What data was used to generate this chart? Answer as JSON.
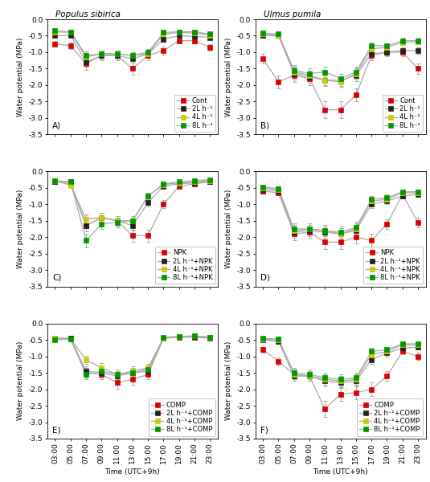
{
  "time_labels": [
    "03:00",
    "05:00",
    "07:00",
    "09:00",
    "11:00",
    "13:00",
    "15:00",
    "17:00",
    "19:00",
    "21:00",
    "23:00"
  ],
  "time_x": [
    0,
    1,
    2,
    3,
    4,
    5,
    6,
    7,
    8,
    9,
    10
  ],
  "panel_A": {
    "title": "Populus sibirica",
    "label": "A)",
    "series": [
      {
        "name": "Cont",
        "y": [
          -0.75,
          -0.8,
          -1.35,
          -1.1,
          -1.1,
          -1.5,
          -1.1,
          -0.95,
          -0.65,
          -0.65,
          -0.85
        ],
        "yerr": [
          0.08,
          0.1,
          0.18,
          0.14,
          0.14,
          0.18,
          0.14,
          0.12,
          0.08,
          0.08,
          0.1
        ],
        "color": "#dd0000",
        "marker": "s",
        "mfc": "#dd0000",
        "ms": 4.5
      },
      {
        "name": "2L h⁻¹",
        "y": [
          -0.5,
          -0.48,
          -1.3,
          -1.1,
          -1.1,
          -1.2,
          -1.05,
          -0.6,
          -0.5,
          -0.52,
          -0.55
        ],
        "yerr": [
          0.06,
          0.05,
          0.15,
          0.12,
          0.12,
          0.12,
          0.12,
          0.08,
          0.06,
          0.06,
          0.07
        ],
        "color": "#222222",
        "marker": "s",
        "mfc": "#222222",
        "ms": 4.5
      },
      {
        "name": "4L h⁻¹",
        "y": [
          -0.38,
          -0.4,
          -1.15,
          -1.05,
          -1.05,
          -1.1,
          -1.05,
          -0.45,
          -0.4,
          -0.42,
          -0.48
        ],
        "yerr": [
          0.05,
          0.05,
          0.12,
          0.1,
          0.1,
          0.1,
          0.1,
          0.06,
          0.05,
          0.05,
          0.06
        ],
        "color": "#cccc00",
        "marker": "s",
        "mfc": "#cccc00",
        "ms": 4.5
      },
      {
        "name": "8L h⁻¹",
        "y": [
          -0.35,
          -0.38,
          -1.1,
          -1.05,
          -1.05,
          -1.1,
          -1.0,
          -0.4,
          -0.38,
          -0.38,
          -0.45
        ],
        "yerr": [
          0.05,
          0.05,
          0.12,
          0.1,
          0.1,
          0.1,
          0.1,
          0.06,
          0.05,
          0.05,
          0.06
        ],
        "color": "#009900",
        "marker": "s",
        "mfc": "#009900",
        "ms": 4.5
      }
    ]
  },
  "panel_B": {
    "title": "Ulmus pumila",
    "label": "B)",
    "series": [
      {
        "name": "Cont",
        "y": [
          -1.2,
          -1.9,
          -1.7,
          -1.8,
          -2.75,
          -2.75,
          -2.3,
          -1.1,
          -1.0,
          -1.0,
          -1.5
        ],
        "yerr": [
          0.15,
          0.2,
          0.2,
          0.2,
          0.25,
          0.25,
          0.2,
          0.15,
          0.12,
          0.12,
          0.15
        ],
        "color": "#dd0000",
        "marker": "s",
        "mfc": "#dd0000",
        "ms": 4.5
      },
      {
        "name": "2L h⁻¹",
        "y": [
          -0.5,
          -0.5,
          -1.65,
          -1.75,
          -1.85,
          -1.85,
          -1.7,
          -1.05,
          -1.0,
          -0.95,
          -0.95
        ],
        "yerr": [
          0.06,
          0.06,
          0.18,
          0.18,
          0.18,
          0.18,
          0.18,
          0.12,
          0.1,
          0.1,
          0.1
        ],
        "color": "#222222",
        "marker": "s",
        "mfc": "#222222",
        "ms": 4.5
      },
      {
        "name": "4L h⁻¹",
        "y": [
          -0.45,
          -0.48,
          -1.6,
          -1.7,
          -1.85,
          -1.9,
          -1.65,
          -0.9,
          -0.85,
          -0.7,
          -0.68
        ],
        "yerr": [
          0.05,
          0.05,
          0.15,
          0.15,
          0.15,
          0.15,
          0.15,
          0.1,
          0.08,
          0.08,
          0.08
        ],
        "color": "#cccc00",
        "marker": "s",
        "mfc": "#cccc00",
        "ms": 4.5
      },
      {
        "name": "8L h⁻¹",
        "y": [
          -0.42,
          -0.45,
          -1.55,
          -1.65,
          -1.6,
          -1.8,
          -1.6,
          -0.8,
          -0.8,
          -0.65,
          -0.65
        ],
        "yerr": [
          0.05,
          0.05,
          0.15,
          0.15,
          0.15,
          0.15,
          0.15,
          0.1,
          0.08,
          0.08,
          0.08
        ],
        "color": "#009900",
        "marker": "s",
        "mfc": "#009900",
        "ms": 4.5
      }
    ]
  },
  "panel_C": {
    "title": "",
    "label": "C)",
    "series": [
      {
        "name": "NPK",
        "y": [
          -0.3,
          -0.38,
          -1.65,
          -1.4,
          -1.5,
          -1.95,
          -1.95,
          -1.0,
          -0.45,
          -0.38,
          -0.32
        ],
        "yerr": [
          0.04,
          0.05,
          0.18,
          0.15,
          0.15,
          0.18,
          0.18,
          0.12,
          0.05,
          0.05,
          0.04
        ],
        "color": "#dd0000",
        "marker": "s",
        "mfc": "#dd0000",
        "ms": 4.5
      },
      {
        "name": "2L h⁻¹+NPK",
        "y": [
          -0.3,
          -0.32,
          -1.65,
          -1.4,
          -1.5,
          -1.65,
          -0.95,
          -0.45,
          -0.38,
          -0.35,
          -0.3
        ],
        "yerr": [
          0.04,
          0.04,
          0.18,
          0.15,
          0.15,
          0.15,
          0.1,
          0.05,
          0.04,
          0.04,
          0.04
        ],
        "color": "#222222",
        "marker": "s",
        "mfc": "#222222",
        "ms": 4.5
      },
      {
        "name": "4L h⁻¹+NPK",
        "y": [
          -0.28,
          -0.42,
          -1.45,
          -1.4,
          -1.5,
          -1.5,
          -0.75,
          -0.4,
          -0.35,
          -0.32,
          -0.28
        ],
        "yerr": [
          0.04,
          0.05,
          0.15,
          0.14,
          0.14,
          0.14,
          0.09,
          0.05,
          0.04,
          0.04,
          0.04
        ],
        "color": "#cccc00",
        "marker": "s",
        "mfc": "#cccc00",
        "ms": 4.5
      },
      {
        "name": "8L h⁻¹+NPK",
        "y": [
          -0.28,
          -0.32,
          -2.1,
          -1.6,
          -1.55,
          -1.5,
          -0.75,
          -0.38,
          -0.32,
          -0.28,
          -0.25
        ],
        "yerr": [
          0.04,
          0.04,
          0.2,
          0.16,
          0.15,
          0.15,
          0.09,
          0.05,
          0.04,
          0.04,
          0.04
        ],
        "color": "#009900",
        "marker": "s",
        "mfc": "#009900",
        "ms": 4.5
      }
    ]
  },
  "panel_D": {
    "title": "",
    "label": "D)",
    "series": [
      {
        "name": "NPK",
        "y": [
          -0.6,
          -0.65,
          -1.9,
          -1.85,
          -2.15,
          -2.15,
          -2.0,
          -2.1,
          -1.6,
          -0.7,
          -1.55
        ],
        "yerr": [
          0.07,
          0.07,
          0.18,
          0.18,
          0.2,
          0.2,
          0.2,
          0.2,
          0.15,
          0.08,
          0.15
        ],
        "color": "#dd0000",
        "marker": "s",
        "mfc": "#dd0000",
        "ms": 4.5
      },
      {
        "name": "2L h⁻¹+NPK",
        "y": [
          -0.55,
          -0.6,
          -1.85,
          -1.8,
          -1.85,
          -1.9,
          -1.8,
          -1.0,
          -0.9,
          -0.75,
          -0.7
        ],
        "yerr": [
          0.06,
          0.07,
          0.18,
          0.18,
          0.18,
          0.18,
          0.18,
          0.12,
          0.1,
          0.08,
          0.08
        ],
        "color": "#222222",
        "marker": "s",
        "mfc": "#222222",
        "ms": 4.5
      },
      {
        "name": "4L h⁻¹+NPK",
        "y": [
          -0.5,
          -0.55,
          -1.8,
          -1.75,
          -1.8,
          -1.9,
          -1.75,
          -0.9,
          -0.85,
          -0.65,
          -0.65
        ],
        "yerr": [
          0.05,
          0.06,
          0.17,
          0.17,
          0.17,
          0.18,
          0.17,
          0.1,
          0.09,
          0.07,
          0.07
        ],
        "color": "#cccc00",
        "marker": "s",
        "mfc": "#cccc00",
        "ms": 4.5
      },
      {
        "name": "8L h⁻¹+NPK",
        "y": [
          -0.48,
          -0.52,
          -1.75,
          -1.75,
          -1.8,
          -1.85,
          -1.7,
          -0.85,
          -0.8,
          -0.62,
          -0.62
        ],
        "yerr": [
          0.05,
          0.06,
          0.17,
          0.17,
          0.17,
          0.17,
          0.17,
          0.1,
          0.09,
          0.07,
          0.07
        ],
        "color": "#009900",
        "marker": "s",
        "mfc": "#009900",
        "ms": 4.5
      }
    ]
  },
  "panel_E": {
    "title": "",
    "label": "E)",
    "series": [
      {
        "name": "COMP",
        "y": [
          -0.45,
          -0.45,
          -1.5,
          -1.55,
          -1.8,
          -1.7,
          -1.55,
          -0.45,
          -0.42,
          -0.42,
          -0.45
        ],
        "yerr": [
          0.05,
          0.05,
          0.15,
          0.15,
          0.18,
          0.17,
          0.15,
          0.05,
          0.05,
          0.05,
          0.05
        ],
        "color": "#dd0000",
        "marker": "s",
        "mfc": "#dd0000",
        "ms": 4.5
      },
      {
        "name": "2L h⁻¹+COMP",
        "y": [
          -0.45,
          -0.45,
          -1.45,
          -1.5,
          -1.6,
          -1.5,
          -1.45,
          -0.45,
          -0.4,
          -0.4,
          -0.42
        ],
        "yerr": [
          0.05,
          0.05,
          0.14,
          0.14,
          0.15,
          0.14,
          0.14,
          0.05,
          0.04,
          0.04,
          0.05
        ],
        "color": "#222222",
        "marker": "s",
        "mfc": "#222222",
        "ms": 4.5
      },
      {
        "name": "4L h⁻¹+COMP",
        "y": [
          -0.45,
          -0.48,
          -1.1,
          -1.35,
          -1.55,
          -1.45,
          -1.35,
          -0.45,
          -0.4,
          -0.38,
          -0.42
        ],
        "yerr": [
          0.05,
          0.05,
          0.12,
          0.14,
          0.15,
          0.14,
          0.13,
          0.05,
          0.04,
          0.04,
          0.05
        ],
        "color": "#cccc00",
        "marker": "s",
        "mfc": "#cccc00",
        "ms": 4.5
      },
      {
        "name": "8L h⁻¹+COMP",
        "y": [
          -0.5,
          -0.48,
          -1.55,
          -1.45,
          -1.55,
          -1.5,
          -1.4,
          -0.42,
          -0.4,
          -0.38,
          -0.42
        ],
        "yerr": [
          0.05,
          0.05,
          0.15,
          0.14,
          0.15,
          0.14,
          0.13,
          0.05,
          0.04,
          0.04,
          0.05
        ],
        "color": "#009900",
        "marker": "s",
        "mfc": "#009900",
        "ms": 4.5
      }
    ]
  },
  "panel_F": {
    "title": "",
    "label": "F)",
    "series": [
      {
        "name": "COMP",
        "y": [
          -0.8,
          -1.15,
          -1.55,
          -1.6,
          -2.6,
          -2.15,
          -2.1,
          -2.0,
          -1.6,
          -0.85,
          -1.0
        ],
        "yerr": [
          0.08,
          0.12,
          0.15,
          0.15,
          0.25,
          0.2,
          0.2,
          0.2,
          0.15,
          0.09,
          0.1
        ],
        "color": "#dd0000",
        "marker": "s",
        "mfc": "#dd0000",
        "ms": 4.5
      },
      {
        "name": "2L h⁻¹+COMP",
        "y": [
          -0.5,
          -0.55,
          -1.6,
          -1.6,
          -1.75,
          -1.8,
          -1.75,
          -1.1,
          -0.9,
          -0.75,
          -0.72
        ],
        "yerr": [
          0.05,
          0.06,
          0.15,
          0.15,
          0.17,
          0.17,
          0.17,
          0.12,
          0.1,
          0.08,
          0.08
        ],
        "color": "#222222",
        "marker": "s",
        "mfc": "#222222",
        "ms": 4.5
      },
      {
        "name": "4L h⁻¹+COMP",
        "y": [
          -0.48,
          -0.5,
          -1.55,
          -1.6,
          -1.7,
          -1.75,
          -1.7,
          -0.95,
          -0.85,
          -0.65,
          -0.65
        ],
        "yerr": [
          0.05,
          0.05,
          0.14,
          0.15,
          0.16,
          0.16,
          0.16,
          0.1,
          0.09,
          0.07,
          0.07
        ],
        "color": "#cccc00",
        "marker": "s",
        "mfc": "#cccc00",
        "ms": 4.5
      },
      {
        "name": "8L h⁻¹+COMP",
        "y": [
          -0.45,
          -0.48,
          -1.5,
          -1.55,
          -1.65,
          -1.7,
          -1.65,
          -0.85,
          -0.8,
          -0.62,
          -0.62
        ],
        "yerr": [
          0.05,
          0.05,
          0.14,
          0.15,
          0.15,
          0.16,
          0.15,
          0.1,
          0.09,
          0.07,
          0.07
        ],
        "color": "#009900",
        "marker": "s",
        "mfc": "#009900",
        "ms": 4.5
      }
    ]
  },
  "ylabel": "Water potential (MPa)",
  "xlabel": "Time (UTC+9h)",
  "title_A": "Populus sibirica",
  "title_B": "Ulmus pumila",
  "yticks": [
    0.0,
    -0.5,
    -1.0,
    -1.5,
    -2.0,
    -2.5,
    -3.0,
    -3.5
  ],
  "ytick_labels": [
    "0.0",
    "-0.5",
    "-1.0",
    "-1.5",
    "-2.0",
    "-2.5",
    "-3.0",
    "-3.5"
  ],
  "ylim": [
    -3.5,
    0.0
  ],
  "line_color": "#aaaaaa",
  "line_width": 0.9,
  "fontsize": 6.5,
  "title_fontsize": 7.5
}
